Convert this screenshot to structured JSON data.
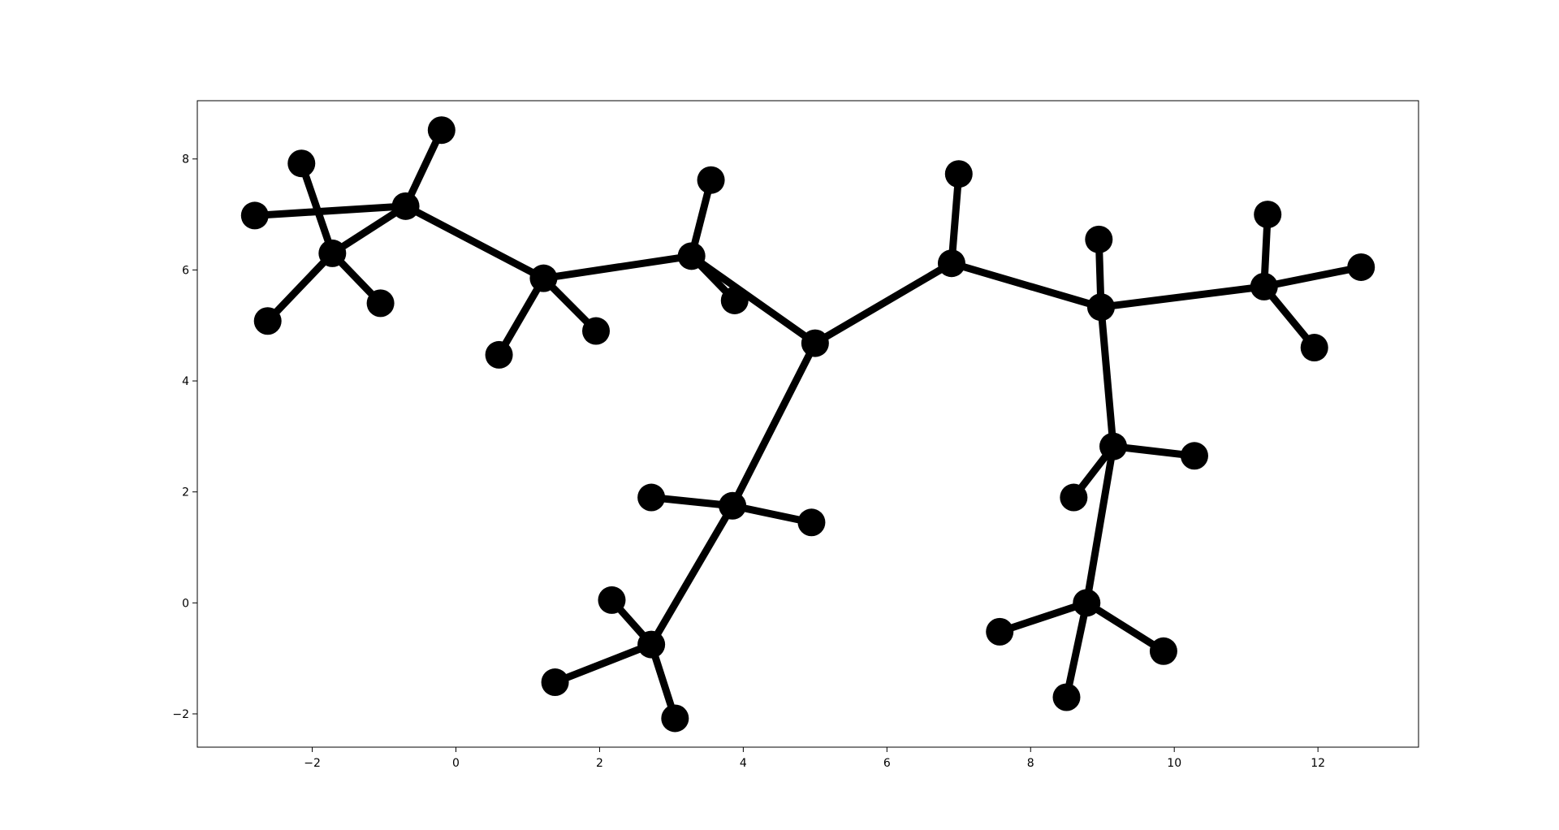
{
  "chart_data": {
    "type": "graph",
    "xlim": [
      -3.6,
      13.4
    ],
    "ylim": [
      -2.6,
      9.05
    ],
    "xticks": [
      -2,
      0,
      2,
      4,
      6,
      8,
      10,
      12
    ],
    "yticks": [
      -2,
      0,
      2,
      4,
      6,
      8
    ],
    "xtick_labels": [
      "−2",
      "0",
      "2",
      "4",
      "6",
      "8",
      "10",
      "12"
    ],
    "ytick_labels": [
      "−2",
      "0",
      "2",
      "4",
      "6",
      "8"
    ],
    "edge_color": "#000000",
    "node_color": "#000000",
    "nodes": [
      {
        "id": 0,
        "x": -0.7,
        "y": 7.15
      },
      {
        "id": 1,
        "x": -0.2,
        "y": 8.52
      },
      {
        "id": 2,
        "x": -2.8,
        "y": 6.98
      },
      {
        "id": 3,
        "x": -1.72,
        "y": 6.3
      },
      {
        "id": 4,
        "x": -2.15,
        "y": 7.92
      },
      {
        "id": 5,
        "x": -2.62,
        "y": 5.08
      },
      {
        "id": 6,
        "x": -1.05,
        "y": 5.4
      },
      {
        "id": 7,
        "x": 1.22,
        "y": 5.85
      },
      {
        "id": 8,
        "x": 0.6,
        "y": 4.47
      },
      {
        "id": 9,
        "x": 1.95,
        "y": 4.9
      },
      {
        "id": 10,
        "x": 3.28,
        "y": 6.25
      },
      {
        "id": 11,
        "x": 3.55,
        "y": 7.62
      },
      {
        "id": 12,
        "x": 3.88,
        "y": 5.45
      },
      {
        "id": 13,
        "x": 5.0,
        "y": 4.68
      },
      {
        "id": 14,
        "x": 6.9,
        "y": 6.12
      },
      {
        "id": 15,
        "x": 7.0,
        "y": 7.73
      },
      {
        "id": 16,
        "x": 8.98,
        "y": 5.33
      },
      {
        "id": 17,
        "x": 8.95,
        "y": 6.55
      },
      {
        "id": 18,
        "x": 11.25,
        "y": 5.7
      },
      {
        "id": 19,
        "x": 11.3,
        "y": 7.0
      },
      {
        "id": 20,
        "x": 12.6,
        "y": 6.05
      },
      {
        "id": 21,
        "x": 11.95,
        "y": 4.6
      },
      {
        "id": 22,
        "x": 9.15,
        "y": 2.82
      },
      {
        "id": 23,
        "x": 10.28,
        "y": 2.65
      },
      {
        "id": 24,
        "x": 8.6,
        "y": 1.9
      },
      {
        "id": 25,
        "x": 8.78,
        "y": 0.0
      },
      {
        "id": 26,
        "x": 7.57,
        "y": -0.52
      },
      {
        "id": 27,
        "x": 9.85,
        "y": -0.87
      },
      {
        "id": 28,
        "x": 8.5,
        "y": -1.7
      },
      {
        "id": 29,
        "x": 3.85,
        "y": 1.75
      },
      {
        "id": 30,
        "x": 2.72,
        "y": 1.9
      },
      {
        "id": 31,
        "x": 4.95,
        "y": 1.45
      },
      {
        "id": 32,
        "x": 2.72,
        "y": -0.75
      },
      {
        "id": 33,
        "x": 2.17,
        "y": 0.05
      },
      {
        "id": 34,
        "x": 1.38,
        "y": -1.43
      },
      {
        "id": 35,
        "x": 3.05,
        "y": -2.08
      }
    ],
    "edges": [
      [
        0,
        1
      ],
      [
        0,
        2
      ],
      [
        0,
        3
      ],
      [
        0,
        7
      ],
      [
        3,
        4
      ],
      [
        3,
        5
      ],
      [
        3,
        6
      ],
      [
        7,
        8
      ],
      [
        7,
        9
      ],
      [
        7,
        10
      ],
      [
        10,
        11
      ],
      [
        10,
        12
      ],
      [
        10,
        13
      ],
      [
        13,
        14
      ],
      [
        13,
        29
      ],
      [
        14,
        15
      ],
      [
        14,
        16
      ],
      [
        16,
        17
      ],
      [
        16,
        18
      ],
      [
        16,
        22
      ],
      [
        18,
        19
      ],
      [
        18,
        20
      ],
      [
        18,
        21
      ],
      [
        22,
        23
      ],
      [
        22,
        24
      ],
      [
        22,
        25
      ],
      [
        25,
        26
      ],
      [
        25,
        27
      ],
      [
        25,
        28
      ],
      [
        29,
        30
      ],
      [
        29,
        31
      ],
      [
        29,
        32
      ],
      [
        32,
        33
      ],
      [
        32,
        34
      ],
      [
        32,
        35
      ]
    ]
  }
}
